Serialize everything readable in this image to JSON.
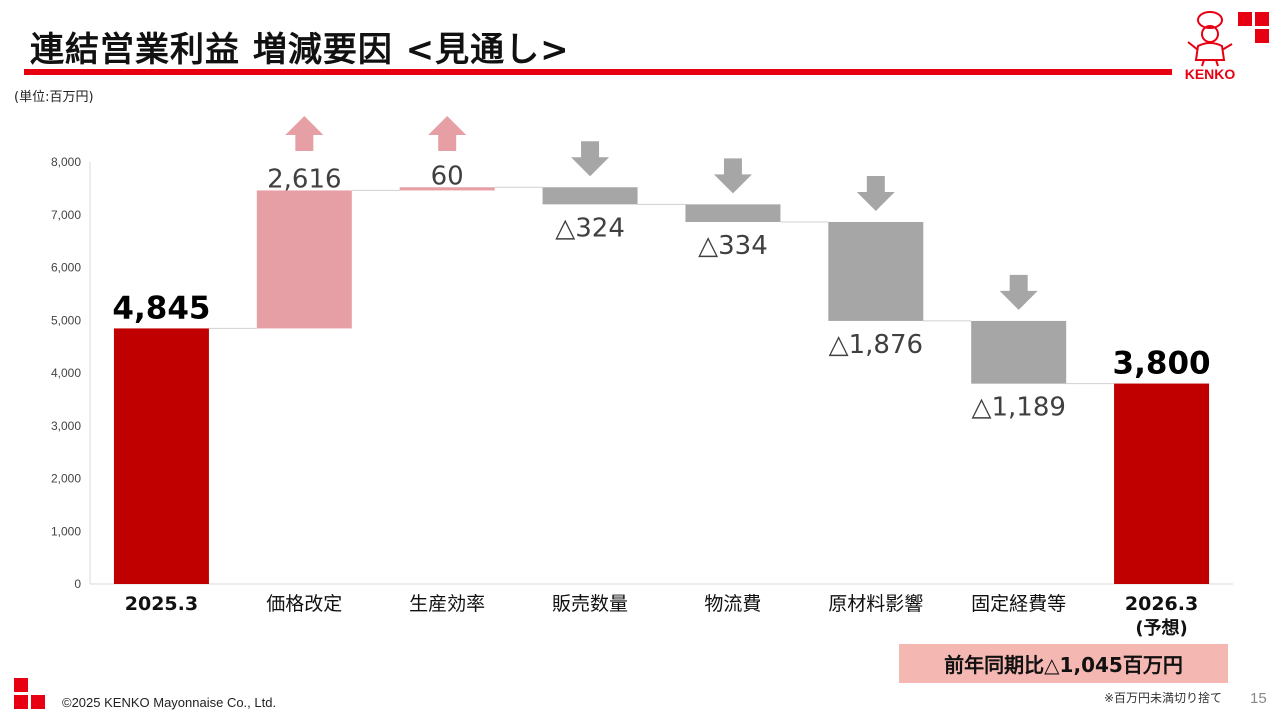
{
  "header": {
    "title": "連結営業利益 増減要因 <見通し>",
    "unit_note": "(単位:百万円)",
    "logo_text": "KENKO"
  },
  "footer": {
    "copyright": "©2025 KENKO Mayonnaise Co., Ltd.",
    "page_number": "15",
    "footnote": "※百万円未満切り捨て"
  },
  "summary_box": "前年同期比△1,045百万円",
  "colors": {
    "brand_red": "#e60012",
    "total_bar": "#c00000",
    "increase_bar": "#e6a0a5",
    "decrease_bar": "#a6a6a6",
    "increase_arrow": "#e6a0a5",
    "decrease_arrow": "#a6a6a6"
  },
  "chart_data": {
    "type": "bar",
    "subtype": "waterfall",
    "categories": [
      "2025.3",
      "価格改定",
      "生産効率",
      "販売数量",
      "物流費",
      "原材料影響",
      "固定経費等",
      "2026.3"
    ],
    "category_sublabels": [
      "",
      "",
      "",
      "",
      "",
      "",
      "",
      "(予想)"
    ],
    "kinds": [
      "total",
      "increase",
      "increase",
      "decrease",
      "decrease",
      "decrease",
      "decrease",
      "total"
    ],
    "values": [
      4845,
      2616,
      60,
      -324,
      -334,
      -1876,
      -1189,
      3800
    ],
    "data_labels": [
      "4,845",
      "2,616",
      "60",
      "△324",
      "△334",
      "△1,876",
      "△1,189",
      "3,800"
    ],
    "ylim": [
      0,
      8000
    ],
    "yticks": [
      0,
      1000,
      2000,
      3000,
      4000,
      5000,
      6000,
      7000,
      8000
    ],
    "ytick_labels": [
      "0",
      "1,000",
      "2,000",
      "3,000",
      "4,000",
      "5,000",
      "6,000",
      "7,000",
      "8,000"
    ],
    "xlabel": "",
    "ylabel": "",
    "grid": false,
    "legend": "none"
  }
}
